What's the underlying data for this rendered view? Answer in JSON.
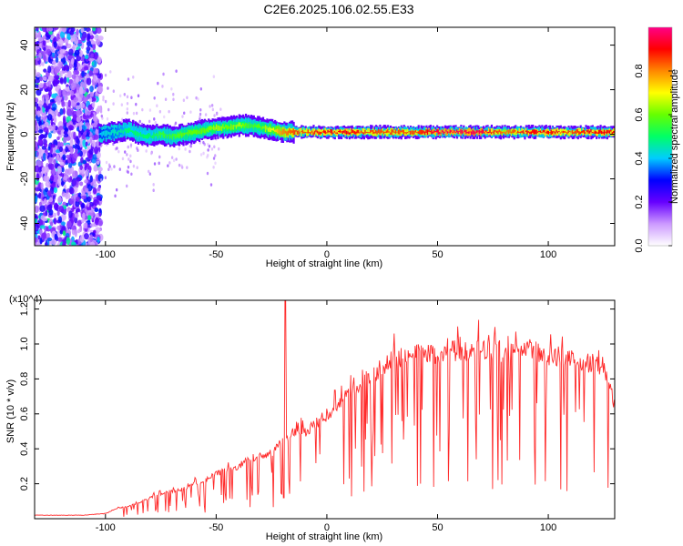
{
  "title": "C2E6.2025.106.02.55.E33",
  "chart_data": [
    {
      "type": "heatmap",
      "xlabel": "Height of straight line (km)",
      "ylabel": "Frequency (Hz)",
      "xlim": [
        -132,
        130
      ],
      "ylim": [
        -50,
        48
      ],
      "xticks": [
        -100,
        -50,
        0,
        50,
        100
      ],
      "yticks": [
        -40,
        -20,
        0,
        20,
        40
      ],
      "colorbar": {
        "label": "Normalized spectral amplitude",
        "range": [
          0,
          1
        ],
        "ticks": [
          "0.0",
          "0.2",
          "0.4",
          "0.6",
          "0.8"
        ],
        "colors": [
          "#ffffff",
          "#cc99ff",
          "#6600ff",
          "#0000ff",
          "#00ccff",
          "#00ff66",
          "#66ff00",
          "#ffff00",
          "#ff8800",
          "#ff0000",
          "#ff0088"
        ]
      },
      "ridge": {
        "x": [
          -103,
          -95,
          -90,
          -85,
          -80,
          -75,
          -70,
          -65,
          -60,
          -55,
          -50,
          -45,
          -40,
          -35,
          -30,
          -25,
          -20,
          -15,
          -10,
          0,
          10,
          20,
          30,
          40,
          50,
          60,
          70,
          80,
          90,
          100,
          110,
          120,
          130
        ],
        "y": [
          0,
          1,
          2,
          0,
          -1,
          0,
          -1,
          0,
          1,
          2,
          3,
          3,
          4,
          4,
          3,
          2,
          1,
          1,
          1,
          1,
          1,
          1,
          1,
          1,
          1,
          1,
          1,
          1,
          1,
          1,
          1,
          1,
          1
        ],
        "amplitude": [
          0.4,
          0.45,
          0.5,
          0.5,
          0.5,
          0.55,
          0.55,
          0.6,
          0.6,
          0.6,
          0.65,
          0.6,
          0.65,
          0.55,
          0.6,
          0.7,
          0.8,
          0.85,
          0.85,
          0.9,
          0.9,
          0.85,
          0.85,
          0.85,
          0.95,
          0.95,
          0.95,
          0.8,
          0.9,
          0.9,
          0.85,
          0.9,
          0.9
        ]
      },
      "grid": false
    },
    {
      "type": "line",
      "xlabel": "Height of straight line (km)",
      "ylabel": "SNR (10 * v/v)",
      "y_multiplier": "(x10^4)",
      "xlim": [
        -132,
        130
      ],
      "ylim": [
        0,
        1.25
      ],
      "xticks": [
        -100,
        -50,
        0,
        50,
        100
      ],
      "yticks": [
        0.2,
        0.4,
        0.6,
        0.8,
        1.0,
        1.2
      ],
      "series": [
        {
          "color": "#ff2a2a",
          "x": [
            -132,
            -120,
            -110,
            -100,
            -95,
            -90,
            -85,
            -80,
            -75,
            -70,
            -65,
            -60,
            -55,
            -50,
            -45,
            -40,
            -35,
            -30,
            -25,
            -20,
            -15,
            -10,
            -5,
            0,
            5,
            10,
            15,
            20,
            25,
            30,
            35,
            40,
            45,
            50,
            55,
            60,
            65,
            70,
            75,
            80,
            85,
            90,
            95,
            100,
            105,
            110,
            115,
            120,
            125,
            130
          ],
          "y": [
            0.02,
            0.02,
            0.02,
            0.03,
            0.06,
            0.07,
            0.09,
            0.12,
            0.14,
            0.16,
            0.17,
            0.2,
            0.22,
            0.26,
            0.28,
            0.3,
            0.35,
            0.36,
            0.38,
            0.45,
            0.5,
            0.5,
            0.55,
            0.6,
            0.66,
            0.72,
            0.78,
            0.82,
            0.88,
            0.92,
            0.94,
            0.95,
            0.96,
            0.95,
            0.97,
            0.97,
            0.97,
            0.98,
            0.96,
            0.95,
            0.97,
            0.98,
            0.97,
            0.94,
            0.93,
            0.92,
            0.9,
            0.9,
            0.88,
            0.65
          ]
        }
      ],
      "grid": false
    }
  ]
}
